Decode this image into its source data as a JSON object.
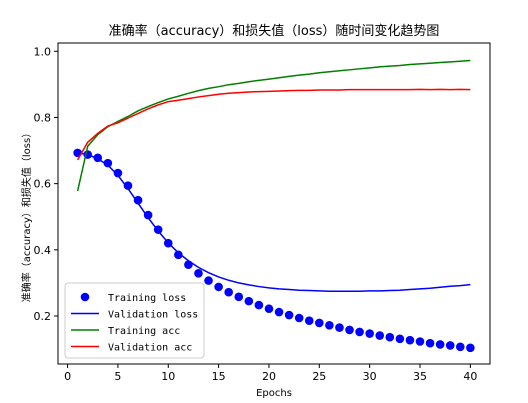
{
  "chart_data": {
    "type": "line",
    "title": "准确率（accuracy）和损失值（loss）随时间变化趋势图",
    "xlabel": "Epochs",
    "ylabel": "准确率（accuracy）和损失值（loss）",
    "xlim": [
      -0.95,
      41.95
    ],
    "ylim": [
      0.055,
      1.025
    ],
    "xticks": [
      0,
      5,
      10,
      15,
      20,
      25,
      30,
      35,
      40
    ],
    "yticks": [
      0.2,
      0.4,
      0.6,
      0.8,
      1.0
    ],
    "ytick_labels": [
      "0.2",
      "0.4",
      "0.6",
      "0.8",
      "1.0"
    ],
    "legend_position": "lower-left",
    "grid": false,
    "x": [
      1,
      2,
      3,
      4,
      5,
      6,
      7,
      8,
      9,
      10,
      11,
      12,
      13,
      14,
      15,
      16,
      17,
      18,
      19,
      20,
      21,
      22,
      23,
      24,
      25,
      26,
      27,
      28,
      29,
      30,
      31,
      32,
      33,
      34,
      35,
      36,
      37,
      38,
      39,
      40
    ],
    "series": [
      {
        "name": "Training loss",
        "style": "dots",
        "color": "#0000ff",
        "values": [
          0.693,
          0.688,
          0.678,
          0.662,
          0.632,
          0.594,
          0.55,
          0.505,
          0.461,
          0.42,
          0.385,
          0.355,
          0.329,
          0.307,
          0.288,
          0.272,
          0.258,
          0.245,
          0.233,
          0.222,
          0.212,
          0.203,
          0.194,
          0.186,
          0.179,
          0.172,
          0.165,
          0.158,
          0.152,
          0.147,
          0.141,
          0.136,
          0.131,
          0.127,
          0.123,
          0.118,
          0.114,
          0.111,
          0.107,
          0.104
        ]
      },
      {
        "name": "Validation loss",
        "style": "line",
        "color": "#0000ff",
        "values": [
          0.693,
          0.688,
          0.675,
          0.656,
          0.625,
          0.585,
          0.541,
          0.497,
          0.457,
          0.421,
          0.391,
          0.367,
          0.347,
          0.331,
          0.318,
          0.308,
          0.3,
          0.294,
          0.289,
          0.285,
          0.282,
          0.28,
          0.278,
          0.277,
          0.276,
          0.275,
          0.275,
          0.275,
          0.275,
          0.276,
          0.276,
          0.277,
          0.278,
          0.28,
          0.282,
          0.284,
          0.287,
          0.29,
          0.292,
          0.295
        ]
      },
      {
        "name": "Training acc",
        "style": "line",
        "color": "#008000",
        "values": [
          0.578,
          0.713,
          0.748,
          0.772,
          0.788,
          0.803,
          0.82,
          0.833,
          0.845,
          0.856,
          0.864,
          0.873,
          0.881,
          0.888,
          0.893,
          0.899,
          0.903,
          0.908,
          0.912,
          0.916,
          0.92,
          0.924,
          0.928,
          0.931,
          0.935,
          0.938,
          0.941,
          0.944,
          0.947,
          0.95,
          0.953,
          0.955,
          0.957,
          0.96,
          0.962,
          0.964,
          0.966,
          0.968,
          0.97,
          0.972
        ]
      },
      {
        "name": "Validation acc",
        "style": "line",
        "color": "#ff0000",
        "values": [
          0.672,
          0.725,
          0.752,
          0.774,
          0.784,
          0.798,
          0.812,
          0.826,
          0.838,
          0.848,
          0.852,
          0.857,
          0.862,
          0.866,
          0.87,
          0.873,
          0.875,
          0.877,
          0.878,
          0.879,
          0.88,
          0.881,
          0.882,
          0.882,
          0.883,
          0.883,
          0.883,
          0.884,
          0.884,
          0.884,
          0.884,
          0.884,
          0.884,
          0.884,
          0.885,
          0.884,
          0.885,
          0.884,
          0.885,
          0.884
        ]
      }
    ]
  }
}
